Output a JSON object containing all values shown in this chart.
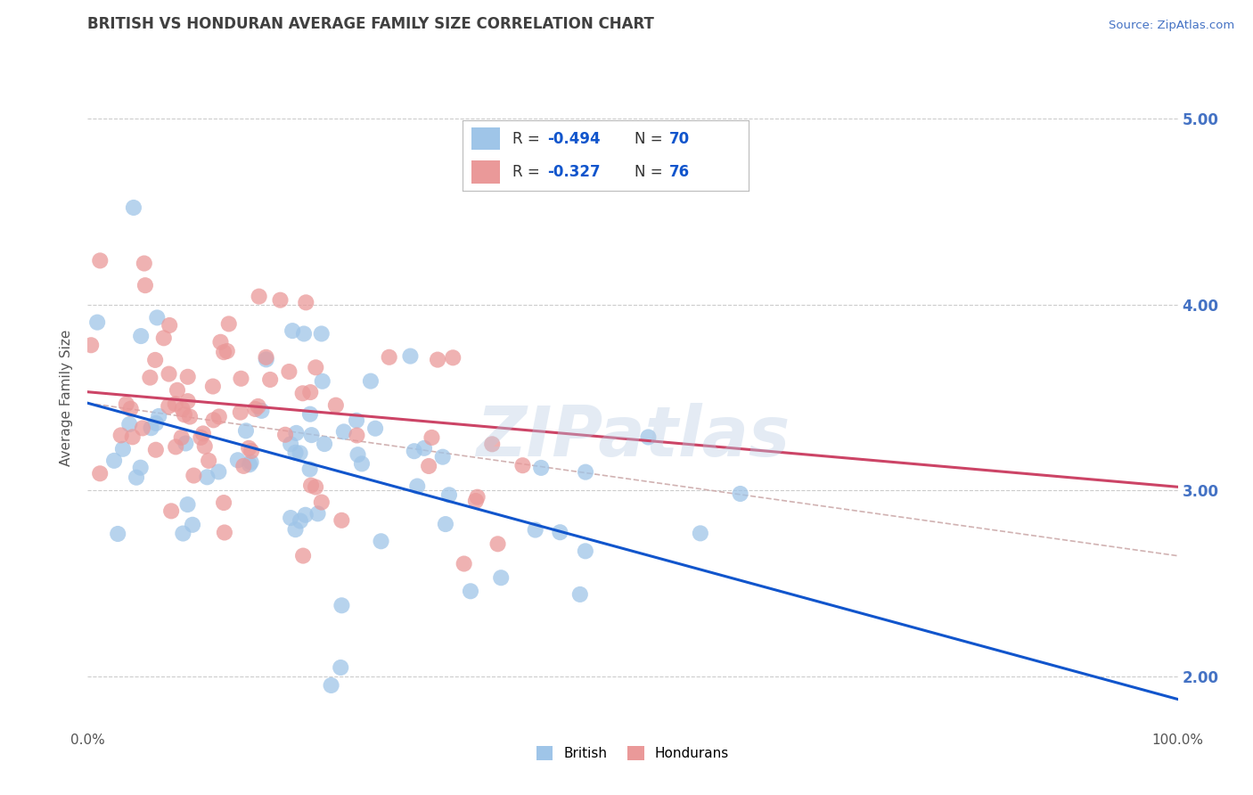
{
  "title": "BRITISH VS HONDURAN AVERAGE FAMILY SIZE CORRELATION CHART",
  "source_text": "Source: ZipAtlas.com",
  "ylabel": "Average Family Size",
  "xlim": [
    0.0,
    100.0
  ],
  "ylim": [
    1.75,
    5.25
  ],
  "yticks": [
    2.0,
    3.0,
    4.0,
    5.0
  ],
  "right_ytick_color": "#4472c4",
  "title_color": "#404040",
  "title_fontsize": 12,
  "watermark_text": "ZIPatlas",
  "british_color": "#9fc5e8",
  "honduran_color": "#ea9999",
  "british_line_color": "#1155cc",
  "honduran_line_color": "#cc4466",
  "dashed_line_color": "#ccaaaa",
  "grid_color": "#cccccc",
  "background_color": "#ffffff",
  "brit_line_start_y": 3.47,
  "brit_line_end_y": 1.88,
  "hon_line_start_y": 3.53,
  "hon_line_end_y": 3.02,
  "dash_line_start_y": 3.47,
  "dash_line_end_y": 2.65
}
